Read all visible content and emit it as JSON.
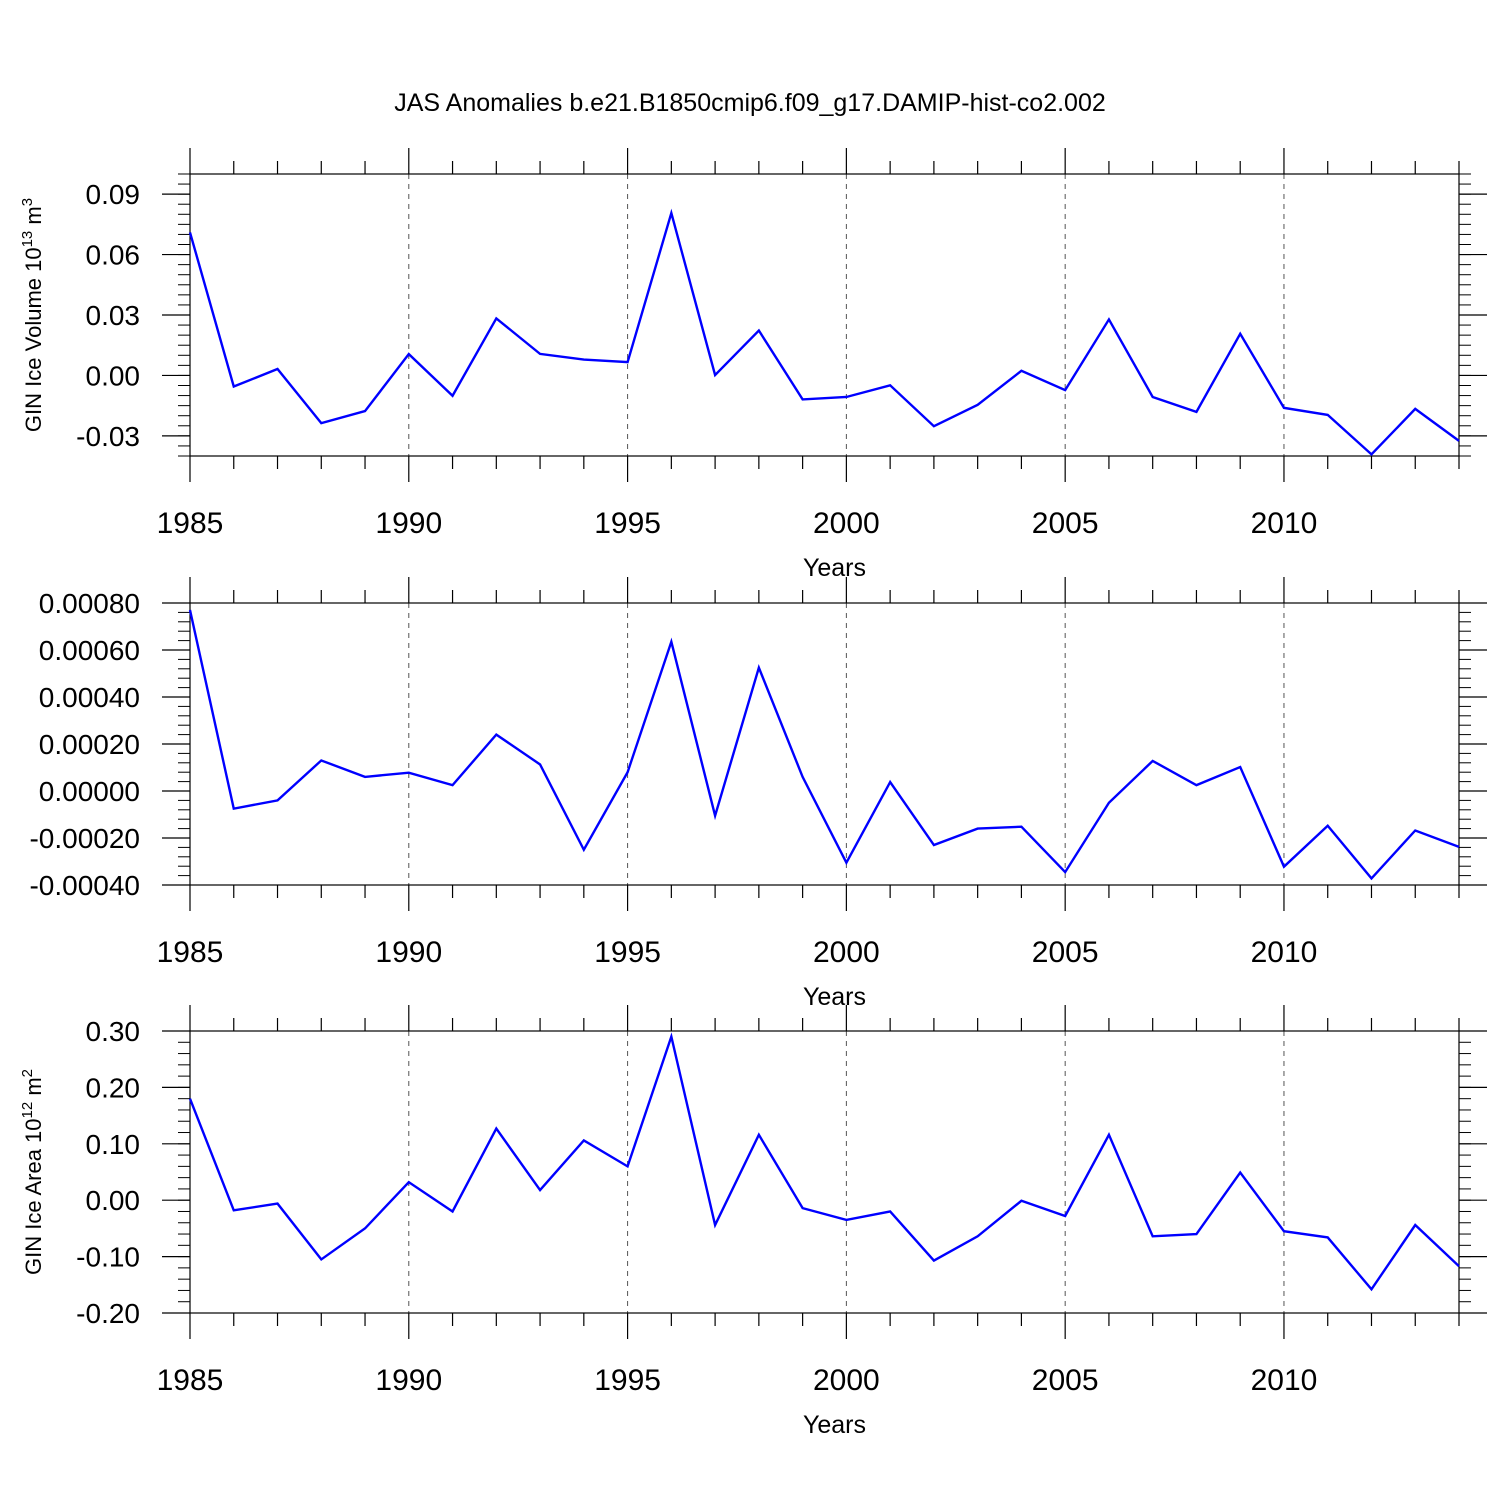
{
  "figure": {
    "title": "JAS Anomalies b.e21.B1850cmip6.f09_g17.DAMIP-hist-co2.002"
  },
  "colors": {
    "line": "#0000ff",
    "axes": "#000000",
    "grid": "#555555",
    "background": "#ffffff"
  },
  "chart_data": [
    {
      "type": "line",
      "ylabel": "GIN Ice Volume",
      "ylabel_unit": "10^13 m^3",
      "ylabel_unit_parts": {
        "base1": "10",
        "exp1": "13",
        "base2": "m",
        "exp2": "3"
      },
      "xlabel": "Years",
      "xlim": [
        1985,
        2014
      ],
      "ylim": [
        -0.04,
        0.1
      ],
      "x_ticks": [
        1985,
        1990,
        1995,
        2000,
        2005,
        2010
      ],
      "y_ticks": [
        -0.03,
        0.0,
        0.03,
        0.06,
        0.09
      ],
      "y_tick_labels": [
        "-0.03",
        "0.00",
        "0.03",
        "0.06",
        "0.09"
      ],
      "y_minor_step": 0.005,
      "grid": "vertical dashed at major x ticks",
      "x": [
        1985,
        1986,
        1987,
        1988,
        1989,
        1990,
        1991,
        1992,
        1993,
        1994,
        1995,
        1996,
        1997,
        1998,
        1999,
        2000,
        2001,
        2002,
        2003,
        2004,
        2005,
        2006,
        2007,
        2008,
        2009,
        2010,
        2011,
        2012,
        2013,
        2014
      ],
      "series": [
        {
          "values": [
            0.071,
            -0.0055,
            0.0032,
            -0.0237,
            -0.0177,
            0.0106,
            -0.0101,
            0.0283,
            0.0107,
            0.0079,
            0.0066,
            0.0806,
            0.0002,
            0.0223,
            -0.0119,
            -0.0107,
            -0.0049,
            -0.0252,
            -0.0146,
            0.0023,
            -0.0073,
            0.0278,
            -0.0107,
            -0.0181,
            0.0207,
            -0.0161,
            -0.0196,
            -0.0392,
            -0.0166,
            -0.0325
          ]
        }
      ]
    },
    {
      "type": "line",
      "ylabel": "",
      "xlabel": "Years",
      "xlim": [
        1985,
        2014
      ],
      "ylim": [
        -0.0004,
        0.0008
      ],
      "x_ticks": [
        1985,
        1990,
        1995,
        2000,
        2005,
        2010
      ],
      "y_ticks": [
        -0.0004,
        -0.0002,
        0.0,
        0.0002,
        0.0004,
        0.0006,
        0.0008
      ],
      "y_tick_labels": [
        "-0.00040",
        "-0.00020",
        "0.00000",
        "0.00020",
        "0.00040",
        "0.00060",
        "0.00080"
      ],
      "y_minor_step": 4e-05,
      "grid": "vertical dashed at major x ticks",
      "x": [
        1985,
        1986,
        1987,
        1988,
        1989,
        1990,
        1991,
        1992,
        1993,
        1994,
        1995,
        1996,
        1997,
        1998,
        1999,
        2000,
        2001,
        2002,
        2003,
        2004,
        2005,
        2006,
        2007,
        2008,
        2009,
        2010,
        2011,
        2012,
        2013,
        2014
      ],
      "series": [
        {
          "values": [
            0.00077,
            -7.5e-05,
            -4e-05,
            0.00013,
            6e-05,
            7.8e-05,
            2.5e-05,
            0.00024,
            0.000113,
            -0.00025,
            8e-05,
            0.000635,
            -0.000105,
            0.000525,
            6e-05,
            -0.000305,
            3.8e-05,
            -0.00023,
            -0.00016,
            -0.000152,
            -0.000345,
            -5e-05,
            0.000128,
            2.5e-05,
            0.000102,
            -0.000322,
            -0.000148,
            -0.000372,
            -0.000168,
            -0.000238
          ]
        }
      ]
    },
    {
      "type": "line",
      "ylabel": "GIN Ice Area",
      "ylabel_unit": "10^12 m^2",
      "ylabel_unit_parts": {
        "base1": "10",
        "exp1": "12",
        "base2": "m",
        "exp2": "2"
      },
      "xlabel": "Years",
      "xlim": [
        1985,
        2014
      ],
      "ylim": [
        -0.2,
        0.3
      ],
      "x_ticks": [
        1985,
        1990,
        1995,
        2000,
        2005,
        2010
      ],
      "y_ticks": [
        -0.2,
        -0.1,
        0.0,
        0.1,
        0.2,
        0.3
      ],
      "y_tick_labels": [
        "-0.20",
        "-0.10",
        "0.00",
        "0.10",
        "0.20",
        "0.30"
      ],
      "y_minor_step": 0.02,
      "grid": "vertical dashed at major x ticks",
      "x": [
        1985,
        1986,
        1987,
        1988,
        1989,
        1990,
        1991,
        1992,
        1993,
        1994,
        1995,
        1996,
        1997,
        1998,
        1999,
        2000,
        2001,
        2002,
        2003,
        2004,
        2005,
        2006,
        2007,
        2008,
        2009,
        2010,
        2011,
        2012,
        2013,
        2014
      ],
      "series": [
        {
          "values": [
            0.18,
            -0.018,
            -0.006,
            -0.105,
            -0.05,
            0.032,
            -0.02,
            0.127,
            0.018,
            0.106,
            0.06,
            0.29,
            -0.044,
            0.116,
            -0.014,
            -0.035,
            -0.02,
            -0.107,
            -0.064,
            -0.001,
            -0.028,
            0.116,
            -0.064,
            -0.06,
            0.049,
            -0.055,
            -0.066,
            -0.158,
            -0.044,
            -0.117
          ]
        }
      ]
    }
  ]
}
